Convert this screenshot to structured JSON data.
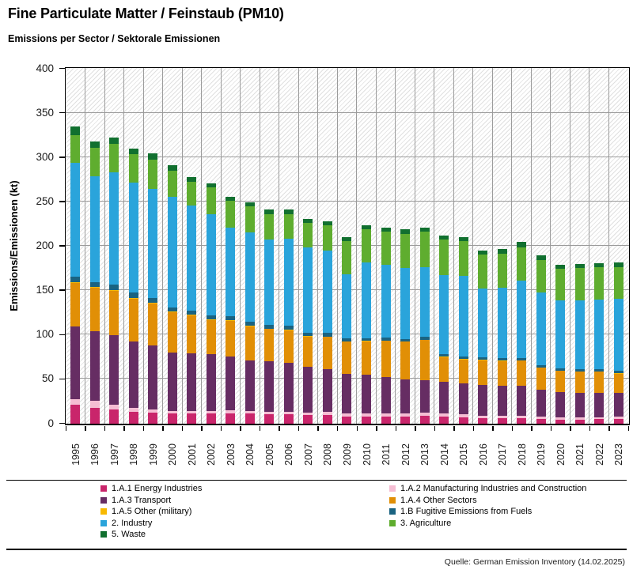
{
  "header": {
    "title": "Fine Particulate Matter / Feinstaub (PM10)",
    "subtitle": "Emissions per Sector / Sektorale Emissionen"
  },
  "source_note": "Quelle: German Emission Inventory (14.02.2025)",
  "chart_data": {
    "type": "bar",
    "stacked": true,
    "title": "Fine Particulate Matter / Feinstaub (PM10)",
    "subtitle": "Emissions per Sector / Sektorale Emissionen",
    "xlabel": "",
    "ylabel": "Emissions/Emissionen (kt)",
    "ylim": [
      0,
      400
    ],
    "ytick_step": 50,
    "grid": true,
    "legend_position": "bottom",
    "categories": [
      "1995",
      "1996",
      "1997",
      "1998",
      "1999",
      "2000",
      "2001",
      "2002",
      "2003",
      "2004",
      "2005",
      "2006",
      "2007",
      "2008",
      "2009",
      "2010",
      "2011",
      "2012",
      "2013",
      "2014",
      "2015",
      "2016",
      "2017",
      "2018",
      "2019",
      "2020",
      "2021",
      "2022",
      "2023"
    ],
    "series": [
      {
        "name": "1.A.1 Energy Industries",
        "color": "#C9256B",
        "values": [
          21.0,
          18.1,
          15.7,
          13.6,
          12.2,
          11.6,
          11.6,
          11.3,
          11.6,
          11.3,
          10.7,
          10.7,
          10.1,
          10.1,
          8.0,
          8.0,
          8.0,
          8.0,
          8.5,
          8.0,
          7.5,
          6.5,
          6.5,
          6.5,
          5.5,
          4.8,
          4.5,
          5.0,
          5.6
        ]
      },
      {
        "name": "1.A.2 Manufacturing Industries and Construction",
        "color": "#F5BDD3",
        "values": [
          6.8,
          7.4,
          5.9,
          4.4,
          3.6,
          2.9,
          2.9,
          2.9,
          3.2,
          2.9,
          3.0,
          3.0,
          2.7,
          3.0,
          3.5,
          3.3,
          3.3,
          3.8,
          3.6,
          3.5,
          3.0,
          2.4,
          2.4,
          2.4,
          2.4,
          2.0,
          2.2,
          1.8,
          2.1
        ]
      },
      {
        "name": "1.A.3 Transport",
        "color": "#662D63",
        "values": [
          81.5,
          79.1,
          78.0,
          75.0,
          72.6,
          66.0,
          64.5,
          64.0,
          61.0,
          57.5,
          56.9,
          54.8,
          51.2,
          48.6,
          45.1,
          43.6,
          41.0,
          38.5,
          37.0,
          35.5,
          35.0,
          34.5,
          34.0,
          33.5,
          30.3,
          28.9,
          28.3,
          28.0,
          26.7
        ]
      },
      {
        "name": "1.A.4 Other Sectors",
        "color": "#E18F06",
        "values": [
          49.0,
          48.3,
          50.0,
          48.0,
          47.0,
          45.0,
          43.0,
          38.5,
          40.0,
          38.0,
          36.0,
          37.0,
          34.0,
          36.0,
          35.7,
          38.0,
          41.0,
          42.0,
          45.0,
          28.0,
          27.0,
          28.0,
          27.9,
          28.5,
          24.9,
          23.7,
          23.4,
          23.7,
          22.2
        ]
      },
      {
        "name": "1.A.5 Other (military)",
        "color": "#F8B900",
        "values": [
          1.0,
          1.0,
          1.0,
          1.0,
          1.0,
          0.9,
          0.8,
          0.8,
          0.8,
          0.8,
          0.6,
          0.6,
          0.6,
          0.6,
          0.5,
          0.5,
          0.5,
          0.5,
          0.5,
          0.4,
          0.4,
          0.4,
          0.4,
          0.4,
          0.3,
          0.3,
          0.3,
          0.3,
          0.3
        ]
      },
      {
        "name": "1.B Fugitive Emissions from Fuels",
        "color": "#1A6381",
        "values": [
          6.8,
          5.9,
          6.0,
          6.0,
          5.5,
          5.0,
          5.0,
          4.5,
          4.5,
          4.3,
          4.2,
          4.2,
          4.0,
          4.0,
          3.3,
          3.0,
          3.1,
          3.0,
          3.5,
          3.0,
          3.0,
          3.0,
          3.0,
          3.0,
          2.4,
          2.4,
          2.4,
          2.4,
          2.4
        ]
      },
      {
        "name": "2. Industry",
        "color": "#2AA4DB",
        "values": [
          128.0,
          119.0,
          127.0,
          124.0,
          123.0,
          124.0,
          118.0,
          114.0,
          100.0,
          101.0,
          96.0,
          98.0,
          96.0,
          93.0,
          72.0,
          85.0,
          82.0,
          80.0,
          78.5,
          89.5,
          91.0,
          77.3,
          79.3,
          87.0,
          81.7,
          77.0,
          77.9,
          79.1,
          81.2
        ]
      },
      {
        "name": "3. Agriculture",
        "color": "#5FAD2F",
        "values": [
          31.5,
          32.6,
          32.0,
          31.5,
          33.0,
          30.0,
          27.0,
          30.0,
          30.0,
          29.0,
          29.0,
          28.0,
          27.5,
          28.0,
          38.0,
          37.6,
          37.9,
          38.5,
          40.0,
          40.1,
          39.1,
          38.4,
          38.5,
          37.6,
          37.0,
          35.3,
          36.2,
          36.5,
          35.9
        ]
      },
      {
        "name": "5. Waste",
        "color": "#11702F",
        "values": [
          9.5,
          6.5,
          7.0,
          7.0,
          7.0,
          6.0,
          5.5,
          5.0,
          5.0,
          5.0,
          4.8,
          4.8,
          4.7,
          4.6,
          4.4,
          4.8,
          4.4,
          4.5,
          4.5,
          4.4,
          4.5,
          4.5,
          5.0,
          6.0,
          5.0,
          4.5,
          4.5,
          4.5,
          5.6
        ]
      }
    ]
  }
}
